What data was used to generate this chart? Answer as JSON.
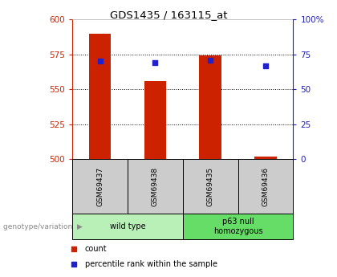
{
  "title": "GDS1435 / 163115_at",
  "samples": [
    "GSM69437",
    "GSM69438",
    "GSM69435",
    "GSM69436"
  ],
  "counts": [
    590,
    556,
    574,
    502
  ],
  "percentiles": [
    70,
    69,
    71,
    67
  ],
  "count_base": 500,
  "count_ylim": [
    500,
    600
  ],
  "count_yticks": [
    500,
    525,
    550,
    575,
    600
  ],
  "pct_ylim": [
    0,
    100
  ],
  "pct_yticks": [
    0,
    25,
    50,
    75,
    100
  ],
  "groups": [
    {
      "label": "wild type",
      "samples": [
        0,
        1
      ],
      "color": "#b8f0b8"
    },
    {
      "label": "p63 null\nhomozygous",
      "samples": [
        2,
        3
      ],
      "color": "#66dd66"
    }
  ],
  "bar_color": "#cc2200",
  "dot_color": "#2020cc",
  "bar_width": 0.4,
  "left_tick_color": "#cc2200",
  "right_tick_color": "#2020bb",
  "sample_box_color": "#cccccc",
  "genotype_label": "genotype/variation",
  "legend_count": "count",
  "legend_pct": "percentile rank within the sample",
  "grid_yticks": [
    525,
    550,
    575
  ]
}
